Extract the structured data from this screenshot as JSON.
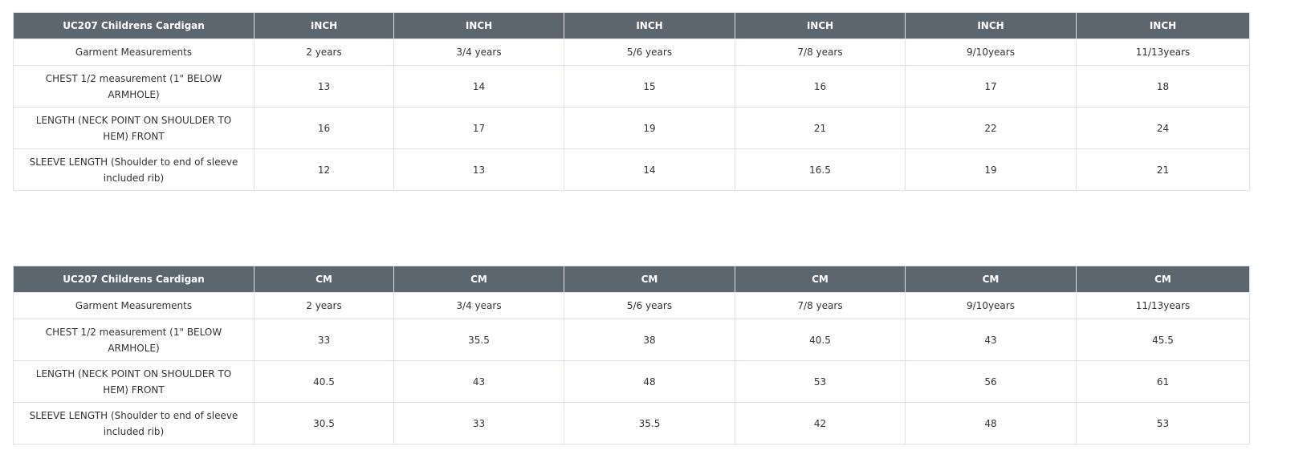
{
  "tables": [
    {
      "title": "UC207 Childrens Cardigan",
      "unit": "INCH",
      "units": [
        "INCH",
        "INCH",
        "INCH",
        "INCH",
        "INCH",
        "INCH"
      ],
      "sizes_label": "Garment Measurements",
      "sizes": [
        "2 years",
        "3/4 years",
        "5/6 years",
        "7/8 years",
        "9/10years",
        "11/13years"
      ],
      "rows": [
        {
          "label": "CHEST 1/2 measurement (1\" BELOW ARMHOLE)",
          "values": [
            "13",
            "14",
            "15",
            "16",
            "17",
            "18"
          ]
        },
        {
          "label": "LENGTH (NECK POINT ON SHOULDER TO HEM) FRONT",
          "values": [
            "16",
            "17",
            "19",
            "21",
            "22",
            "24"
          ]
        },
        {
          "label": "SLEEVE LENGTH (Shoulder to end of sleeve included rib)",
          "values": [
            "12",
            "13",
            "14",
            "16.5",
            "19",
            "21"
          ]
        }
      ]
    },
    {
      "title": "UC207 Childrens Cardigan",
      "unit": "CM",
      "units": [
        "CM",
        "CM",
        "CM",
        "CM",
        "CM",
        "CM"
      ],
      "sizes_label": "Garment Measurements",
      "sizes": [
        "2 years",
        "3/4 years",
        "5/6 years",
        "7/8 years",
        "9/10years",
        "11/13years"
      ],
      "rows": [
        {
          "label": "CHEST 1/2 measurement (1\" BELOW ARMHOLE)",
          "values": [
            "33",
            "35.5",
            "38",
            "40.5",
            "43",
            "45.5"
          ]
        },
        {
          "label": "LENGTH (NECK POINT ON SHOULDER TO HEM) FRONT",
          "values": [
            "40.5",
            "43",
            "48",
            "53",
            "56",
            "61"
          ]
        },
        {
          "label": "SLEEVE LENGTH (Shoulder to end of sleeve included rib)",
          "values": [
            "30.5",
            "33",
            "35.5",
            "42",
            "48",
            "53"
          ]
        }
      ]
    }
  ],
  "colors": {
    "header_bg": "#5c666f",
    "border": "#e1e1ee",
    "text": "#333333"
  }
}
